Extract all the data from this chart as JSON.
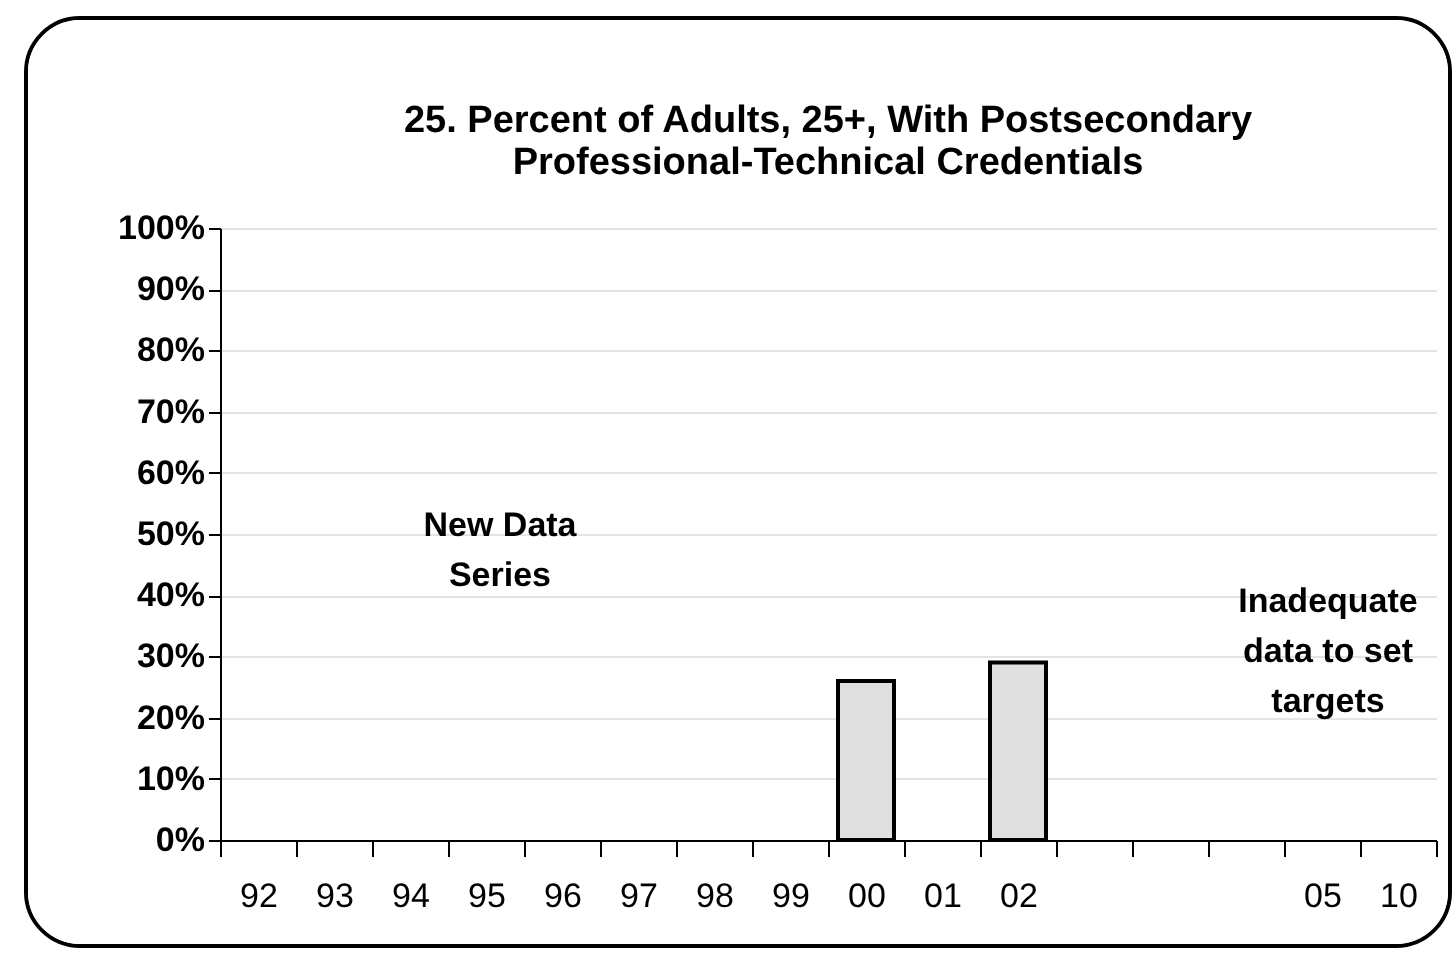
{
  "chart_data": {
    "type": "bar",
    "title": [
      "25. Percent of Adults, 25+, With Postsecondary",
      "Professional-Technical Credentials"
    ],
    "categories": [
      "92",
      "93",
      "94",
      "95",
      "96",
      "97",
      "98",
      "99",
      "00",
      "01",
      "02",
      null,
      null,
      null,
      "05",
      "10"
    ],
    "values": [
      null,
      null,
      null,
      null,
      null,
      null,
      null,
      null,
      26,
      null,
      29,
      null,
      null,
      null,
      null,
      null
    ],
    "color": "#e0e0e0",
    "ylim": [
      0,
      100
    ],
    "yticks": [
      {
        "value": 0,
        "label": "0%"
      },
      {
        "value": 10,
        "label": "10%"
      },
      {
        "value": 20,
        "label": "20%"
      },
      {
        "value": 30,
        "label": "30%"
      },
      {
        "value": 40,
        "label": "40%"
      },
      {
        "value": 50,
        "label": "50%"
      },
      {
        "value": 60,
        "label": "60%"
      },
      {
        "value": 70,
        "label": "70%"
      },
      {
        "value": 80,
        "label": "80%"
      },
      {
        "value": 90,
        "label": "90%"
      },
      {
        "value": 100,
        "label": "100%"
      }
    ],
    "grid": "y",
    "annotations": [
      "New Data Series",
      "Inadequate data to set targets"
    ]
  }
}
